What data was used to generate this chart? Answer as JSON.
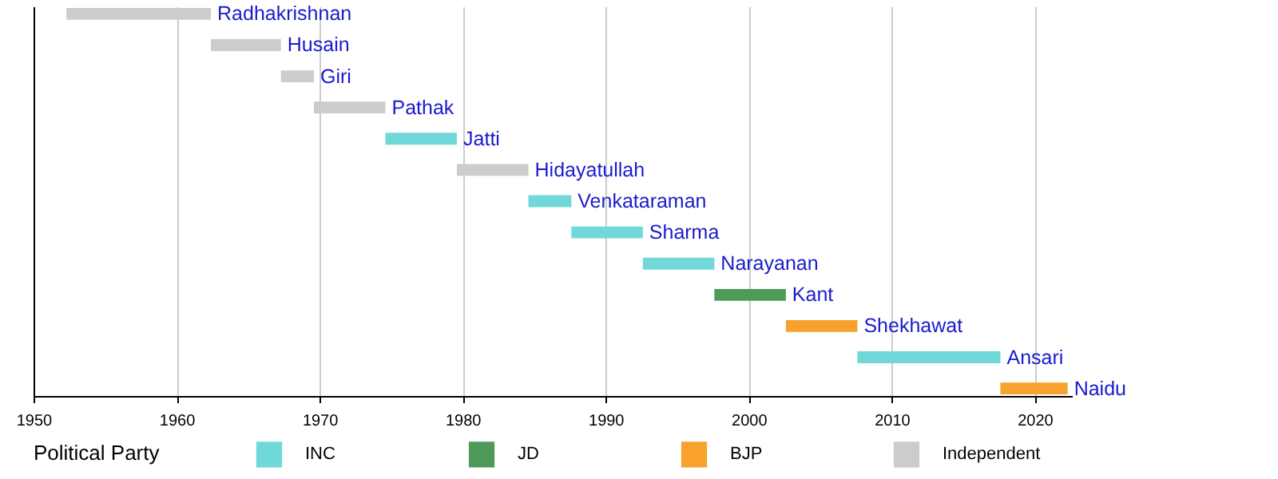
{
  "chart_data": {
    "type": "bar",
    "orientation": "horizontal",
    "legend_title": "Political Party",
    "legend": "bottom",
    "grid": "x",
    "tick_labels": "x",
    "categories": [
      "Radhakrishnan",
      "Husain",
      "Giri",
      "Pathak",
      "Jatti",
      "Hidayatullah",
      "Venkataraman",
      "Sharma",
      "Narayanan",
      "Kant",
      "Shekhawat",
      "Ansari",
      "Naidu"
    ],
    "series": [
      {
        "name": "INC",
        "color": "#70d8d8",
        "values": [
          null,
          null,
          null,
          null,
          5,
          null,
          3,
          5,
          5,
          null,
          null,
          10,
          null
        ],
        "base": [
          null,
          null,
          null,
          null,
          1974.6,
          null,
          1984.6,
          1987.6,
          1992.6,
          null,
          null,
          2007.6,
          null
        ]
      },
      {
        "name": "JD",
        "color": "#4f9a58",
        "values": [
          null,
          null,
          null,
          null,
          null,
          null,
          null,
          null,
          null,
          5,
          null,
          null,
          null
        ],
        "base": [
          null,
          null,
          null,
          null,
          null,
          null,
          null,
          null,
          null,
          1997.6,
          null,
          null,
          null
        ]
      },
      {
        "name": "BJP",
        "color": "#f8a12c",
        "values": [
          null,
          null,
          null,
          null,
          null,
          null,
          null,
          null,
          null,
          null,
          5,
          null,
          4.7
        ],
        "base": [
          null,
          null,
          null,
          null,
          null,
          null,
          null,
          null,
          null,
          null,
          2002.6,
          null,
          2017.6
        ]
      },
      {
        "name": "Independent",
        "color": "#cccccc",
        "values": [
          10.1,
          4.9,
          2.3,
          5,
          null,
          5,
          null,
          null,
          null,
          null,
          null,
          null,
          null
        ],
        "base": [
          1952.3,
          1962.4,
          1967.3,
          1969.6,
          null,
          1979.6,
          null,
          null,
          null,
          null,
          null,
          null,
          null
        ]
      }
    ],
    "xlim": [
      1950,
      2022.6
    ],
    "xticks": [
      1950,
      1960,
      1970,
      1980,
      1990,
      2000,
      2010,
      2020
    ]
  }
}
